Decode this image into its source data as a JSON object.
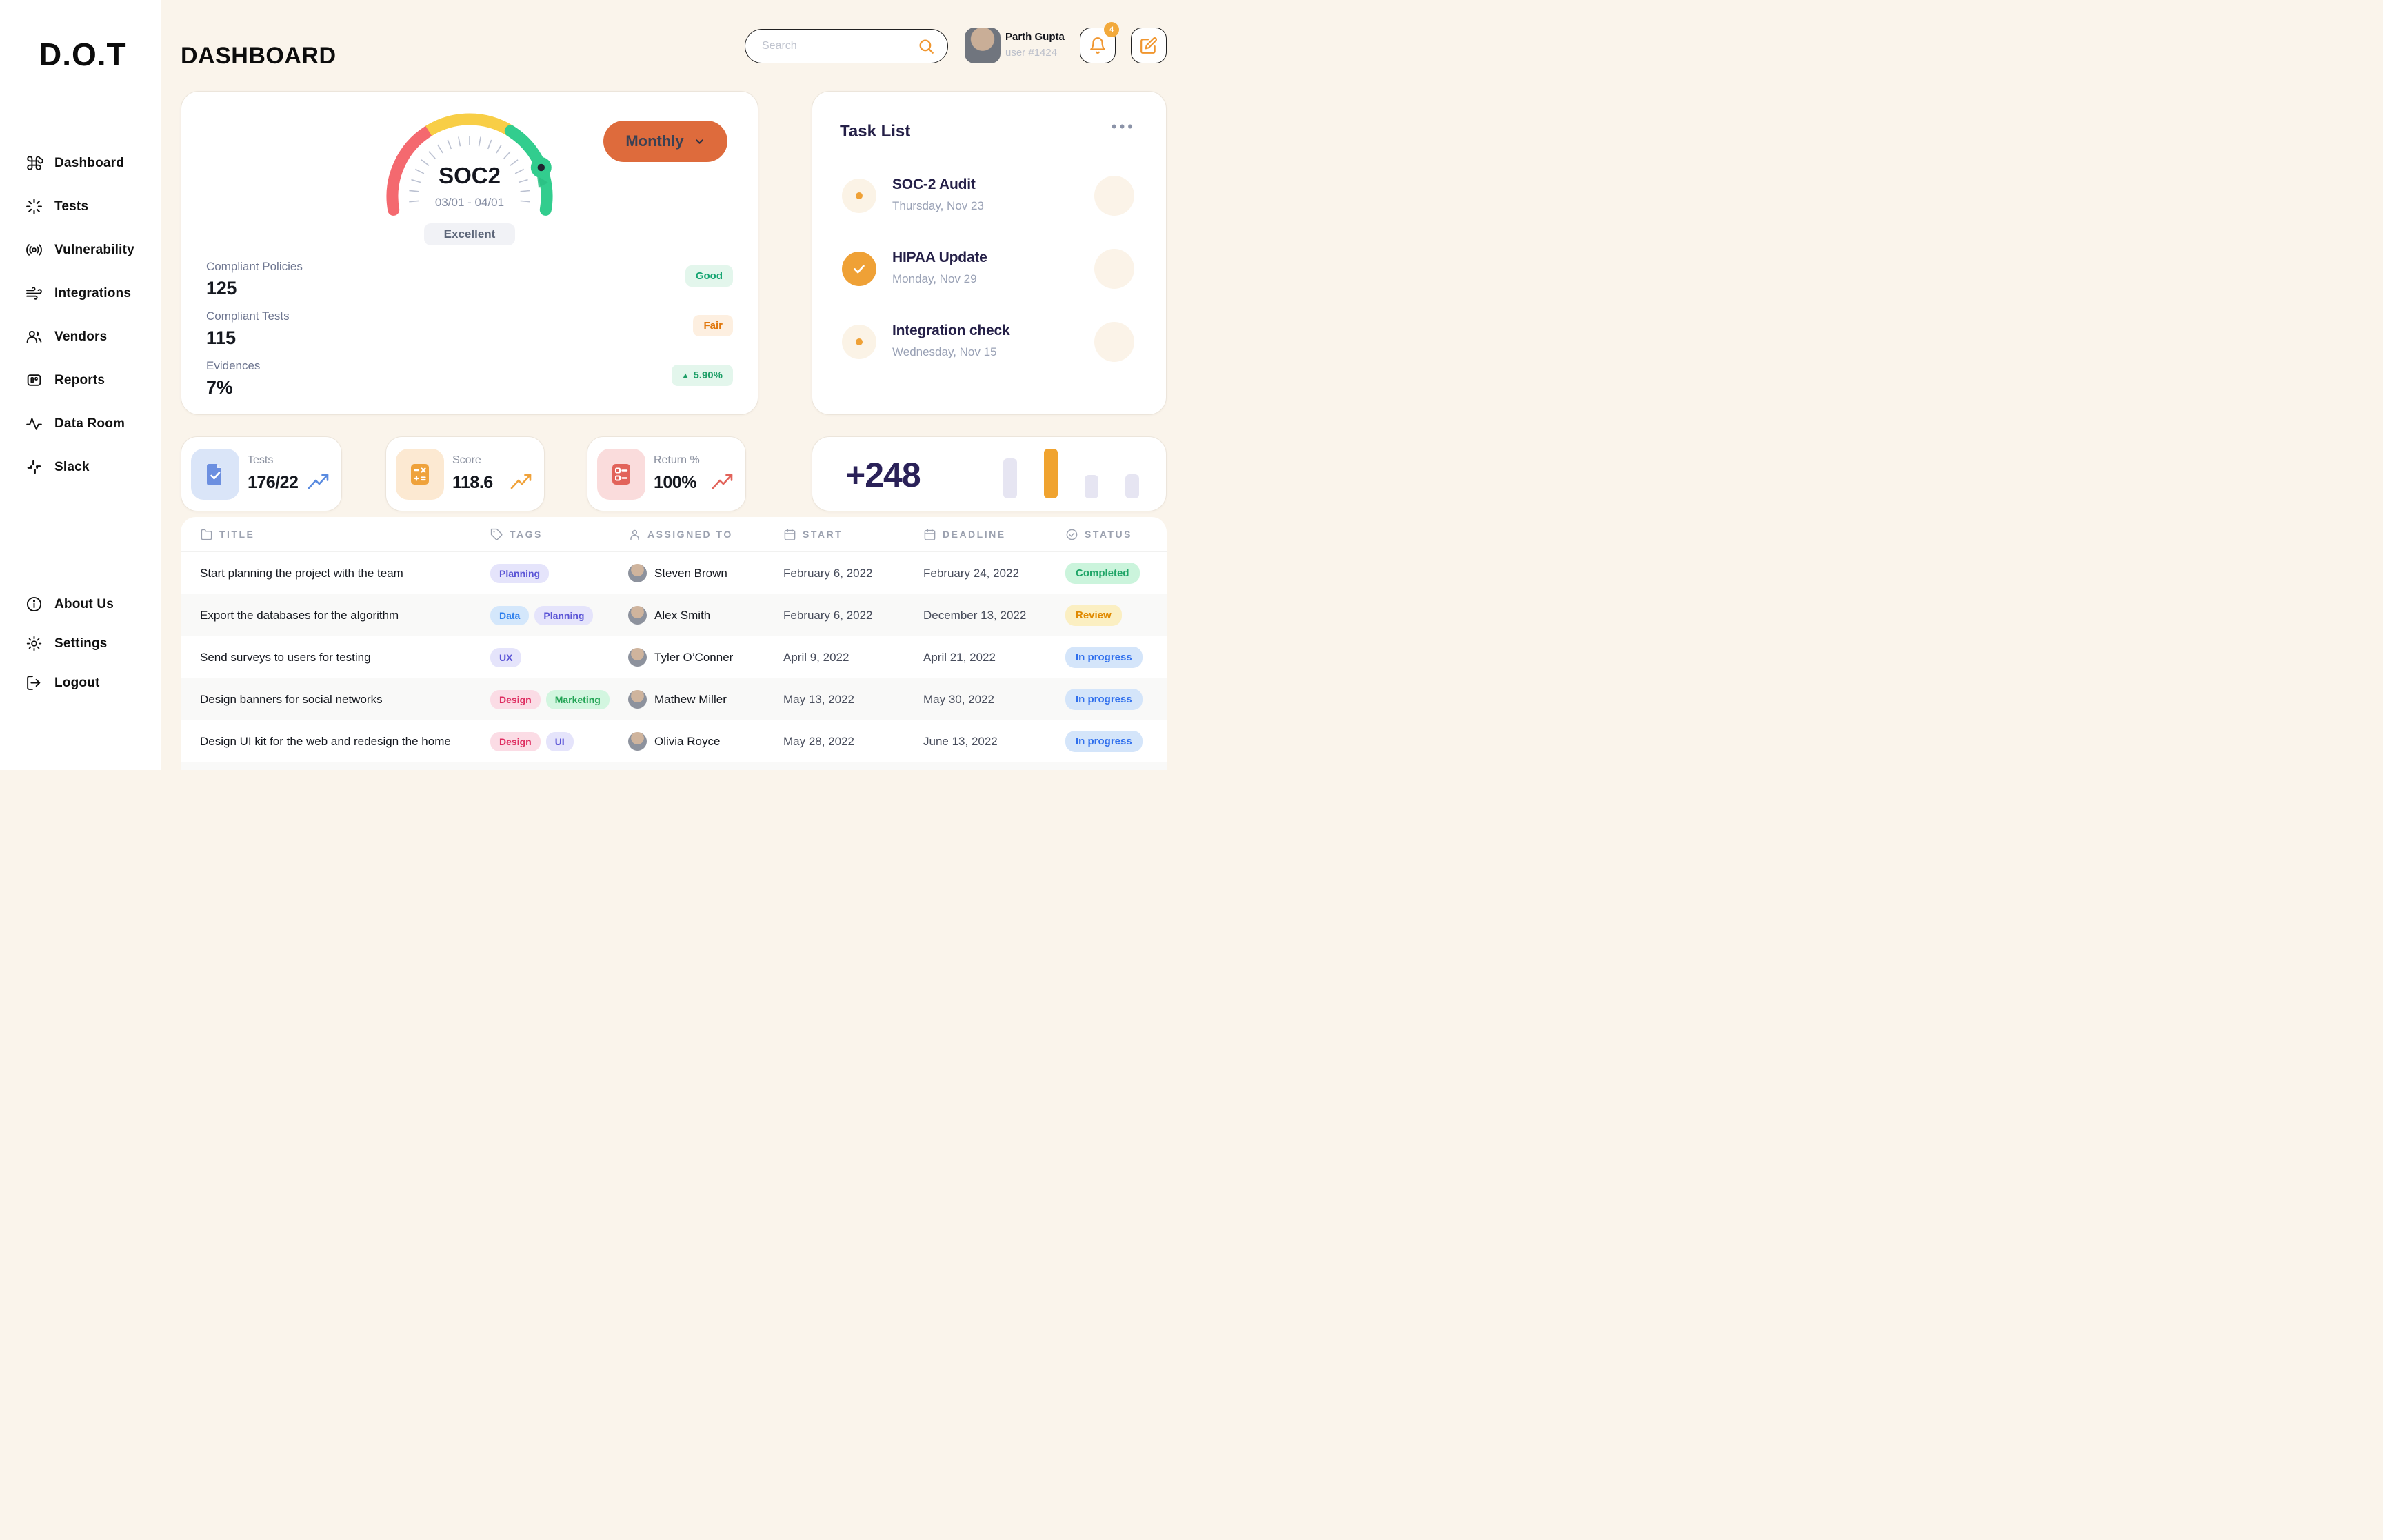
{
  "app": {
    "logo": "D.O.T",
    "title": "DASHBOARD"
  },
  "sidebar": {
    "items": [
      {
        "icon": "command-icon",
        "label": "Dashboard"
      },
      {
        "icon": "loader-icon",
        "label": "Tests"
      },
      {
        "icon": "radio-icon",
        "label": "Vulnerability"
      },
      {
        "icon": "wind-icon",
        "label": "Integrations"
      },
      {
        "icon": "users-icon",
        "label": "Vendors"
      },
      {
        "icon": "reports-icon",
        "label": "Reports"
      },
      {
        "icon": "activity-icon",
        "label": "Data Room"
      },
      {
        "icon": "slack-icon",
        "label": "Slack"
      }
    ],
    "footer": [
      {
        "icon": "info-icon",
        "label": "About Us"
      },
      {
        "icon": "gear-icon",
        "label": "Settings"
      },
      {
        "icon": "logout-icon",
        "label": "Logout"
      }
    ]
  },
  "header": {
    "search_placeholder": "Search",
    "user_name": "Parth Gupta",
    "user_id": "user #1424",
    "notifications": "4"
  },
  "gauge": {
    "title": "SOC2",
    "period": "03/01 - 04/01",
    "rating": "Excellent",
    "interval": "Monthly",
    "colors": {
      "red": "#F4696F",
      "yellow": "#F8CE46",
      "green": "#32CD8E"
    }
  },
  "soc2_metrics": [
    {
      "label": "Compliant Policies",
      "value": "125",
      "badge": "Good",
      "type": "good",
      "marker": ""
    },
    {
      "label": "Compliant Tests",
      "value": "115",
      "badge": "Fair",
      "type": "fair",
      "marker": ""
    },
    {
      "label": "Evidences",
      "value": "7%",
      "badge": "5.90%",
      "type": "up",
      "marker": "▲"
    }
  ],
  "task_list": {
    "title": "Task List",
    "menu": "•••",
    "tasks": [
      {
        "title": "SOC-2 Audit",
        "date": "Thursday, Nov 23",
        "state": "pending"
      },
      {
        "title": "HIPAA Update",
        "date": "Monday, Nov 29",
        "state": "done"
      },
      {
        "title": "Integration check",
        "date": "Wednesday, Nov 15",
        "state": "pending"
      }
    ]
  },
  "stat_cards": [
    {
      "label": "Tests",
      "value": "176/22",
      "icon": "file-check-icon",
      "accent": "#5A8BE0",
      "tile": "#DAE5F8"
    },
    {
      "label": "Score",
      "value": "118.6",
      "icon": "calculator-icon",
      "accent": "#F0A23A",
      "tile": "#FCE9D2"
    },
    {
      "label": "Return %",
      "value": "100%",
      "icon": "list-icon",
      "accent": "#E2635A",
      "tile": "#FADCDC"
    }
  ],
  "summary": {
    "value": "+248",
    "bars": [
      {
        "h": 0.8,
        "color": "#E6E5F2"
      },
      {
        "h": 1.0,
        "color": "#F0A32F"
      },
      {
        "h": 0.47,
        "color": "#E6E5F2"
      },
      {
        "h": 0.48,
        "color": "#E6E5F2"
      }
    ]
  },
  "table": {
    "columns": [
      {
        "icon": "folder-icon",
        "label": "TITLE"
      },
      {
        "icon": "tag-icon",
        "label": "TAGS"
      },
      {
        "icon": "user-icon",
        "label": "ASSIGNED TO"
      },
      {
        "icon": "calendar-icon",
        "label": "START"
      },
      {
        "icon": "calendar-icon",
        "label": "DEADLINE"
      },
      {
        "icon": "check-circle-icon",
        "label": "STATUS"
      }
    ],
    "rows": [
      {
        "title": "Start planning the project with the team",
        "tags": [
          {
            "label": "Planning",
            "type": "indigo"
          }
        ],
        "assignee": "Steven Brown",
        "start": "February 6, 2022",
        "deadline": "February 24, 2022",
        "status": "Completed",
        "status_type": "completed"
      },
      {
        "title": "Export the databases for the algorithm",
        "tags": [
          {
            "label": "Data",
            "type": "blue"
          },
          {
            "label": "Planning",
            "type": "indigo"
          }
        ],
        "assignee": "Alex Smith",
        "start": "February 6, 2022",
        "deadline": "December 13, 2022",
        "status": "Review",
        "status_type": "review"
      },
      {
        "title": "Send surveys to users for testing",
        "tags": [
          {
            "label": "UX",
            "type": "indigo"
          }
        ],
        "assignee": "Tyler O’Conner",
        "start": "April 9, 2022",
        "deadline": "April 21, 2022",
        "status": "In progress",
        "status_type": "progress"
      },
      {
        "title": "Design banners for social networks",
        "tags": [
          {
            "label": "Design",
            "type": "red"
          },
          {
            "label": "Marketing",
            "type": "green"
          }
        ],
        "assignee": "Mathew Miller",
        "start": "May 13, 2022",
        "deadline": "May 30, 2022",
        "status": "In progress",
        "status_type": "progress"
      },
      {
        "title": "Design UI kit for the web and redesign the home",
        "tags": [
          {
            "label": "Design",
            "type": "red"
          },
          {
            "label": "UI",
            "type": "indigo"
          }
        ],
        "assignee": "Olivia Royce",
        "start": "May 28, 2022",
        "deadline": "June 13, 2022",
        "status": "In progress",
        "status_type": "progress"
      }
    ]
  }
}
